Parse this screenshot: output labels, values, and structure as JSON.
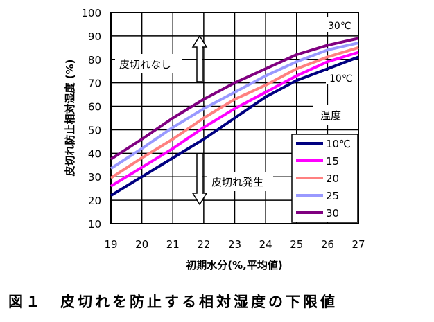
{
  "chart_data": {
    "type": "line",
    "title": "",
    "xlabel": "初期水分(%,平均値)",
    "ylabel": "皮切れ防止相対湿度 (%)",
    "xlim": [
      19,
      27
    ],
    "ylim": [
      10,
      100
    ],
    "xticks": [
      "19",
      "20",
      "21",
      "22",
      "23",
      "24",
      "25",
      "26",
      "27"
    ],
    "yticks": [
      "10",
      "20",
      "30",
      "40",
      "50",
      "60",
      "70",
      "80",
      "90",
      "100"
    ],
    "grid": true,
    "legend_position": "bottom-right",
    "x": [
      19,
      20,
      21,
      22,
      23,
      24,
      25,
      26,
      27
    ],
    "series": [
      {
        "name": "10℃",
        "color": "#000080",
        "values": [
          22,
          30,
          38,
          46,
          55,
          64,
          71,
          76,
          81
        ]
      },
      {
        "name": "15",
        "color": "#ff00ff",
        "values": [
          26,
          34,
          42,
          51,
          59,
          66,
          73,
          79,
          83
        ]
      },
      {
        "name": "20",
        "color": "#ff8080",
        "values": [
          29.5,
          38,
          46,
          55,
          63,
          69,
          76,
          81,
          85
        ]
      },
      {
        "name": "25",
        "color": "#9999ff",
        "values": [
          33.5,
          42,
          51,
          59,
          66,
          73,
          79,
          84,
          87
        ]
      },
      {
        "name": "30",
        "color": "#800080",
        "values": [
          37.5,
          46,
          55,
          63,
          70,
          76,
          82,
          86,
          89
        ]
      }
    ],
    "annotations": {
      "top_temp": "30℃",
      "bottom_temp": "10℃",
      "temp_label": "温度",
      "no_crack": "皮切れなし",
      "crack": "皮切れ発生"
    }
  },
  "caption": "図１　皮切れを防止する相対湿度の下限値"
}
